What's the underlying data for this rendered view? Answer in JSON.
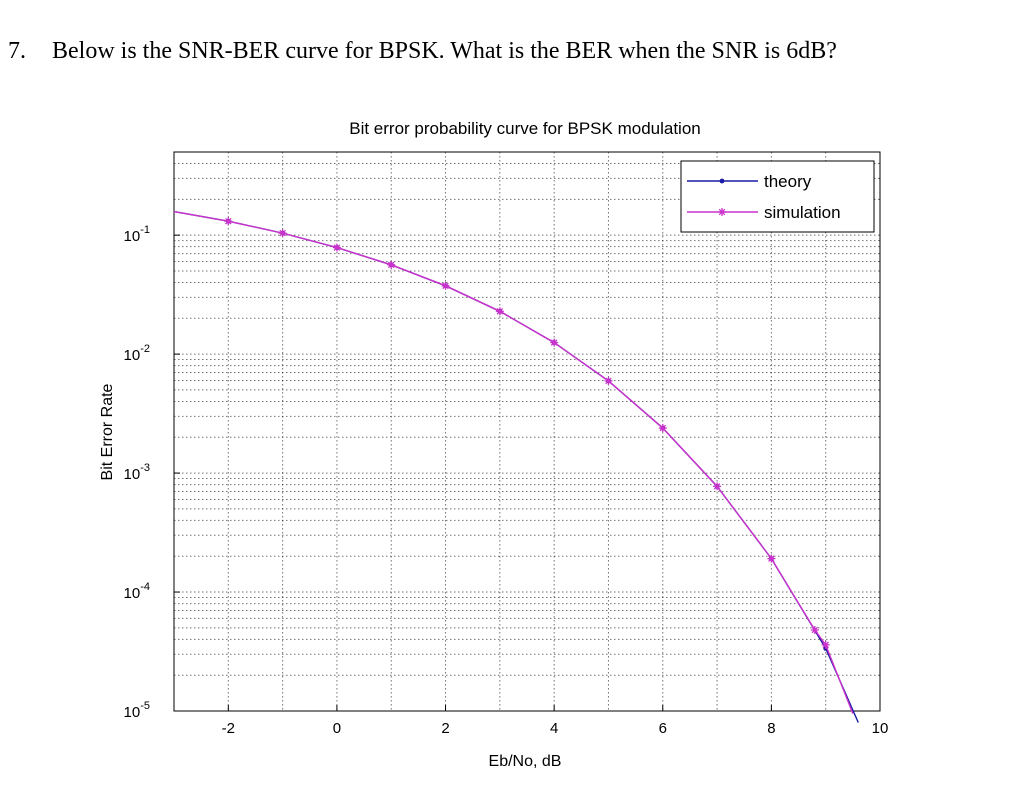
{
  "question": {
    "number": "7.",
    "text": "Below is the SNR-BER curve for BPSK. What is the BER when the SNR is 6dB?"
  },
  "chart_data": {
    "type": "line",
    "title": "Bit error probability curve for BPSK modulation",
    "xlabel": "Eb/No, dB",
    "ylabel": "Bit Error Rate",
    "xlim": [
      -3,
      10
    ],
    "ylim": [
      1e-05,
      0.5
    ],
    "yscale": "log",
    "grid": true,
    "legend_position": "top-right",
    "xticks": [
      "-2",
      "0",
      "2",
      "4",
      "6",
      "8",
      "10"
    ],
    "yticks": [
      {
        "base": "10",
        "exp": "-1",
        "value": 0.1
      },
      {
        "base": "10",
        "exp": "-2",
        "value": 0.01
      },
      {
        "base": "10",
        "exp": "-3",
        "value": 0.001
      },
      {
        "base": "10",
        "exp": "-4",
        "value": 0.0001
      },
      {
        "base": "10",
        "exp": "-5",
        "value": 1e-05
      }
    ],
    "series": [
      {
        "name": "theory",
        "color": "#1a1aa6",
        "marker": "dot",
        "x": [
          -3,
          -2,
          -1,
          0,
          1,
          2,
          3,
          4,
          5,
          6,
          7,
          8,
          9,
          9.6
        ],
        "y": [
          0.158,
          0.131,
          0.104,
          0.0786,
          0.0563,
          0.0375,
          0.0229,
          0.0125,
          0.00595,
          0.00239,
          0.000773,
          0.000191,
          3.36e-05,
          8e-06
        ]
      },
      {
        "name": "simulation",
        "color": "#cc33cc",
        "marker": "star",
        "x": [
          -3,
          -2,
          -1,
          0,
          1,
          2,
          3,
          4,
          5,
          6,
          7,
          8,
          8.8,
          9,
          9.5
        ],
        "y": [
          0.158,
          0.131,
          0.104,
          0.0786,
          0.0563,
          0.0375,
          0.0229,
          0.0125,
          0.00595,
          0.00239,
          0.000773,
          0.000191,
          4.8e-05,
          3.6e-05,
          9.5e-06
        ]
      }
    ]
  }
}
